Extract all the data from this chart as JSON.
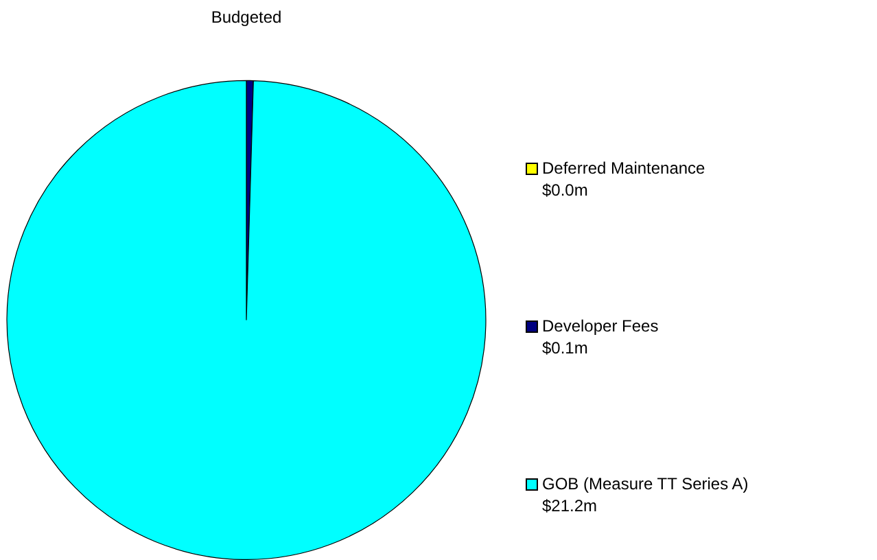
{
  "chart_data": {
    "type": "pie",
    "title": "Budgeted",
    "categories": [
      "Deferred Maintenance",
      "Developer Fees",
      "GOB (Measure TT Series A)"
    ],
    "values": [
      0.0,
      0.1,
      21.2
    ],
    "value_labels": [
      "$0.0m",
      "$0.1m",
      "$21.2m"
    ],
    "colors": [
      "#ffff00",
      "#000080",
      "#00ffff"
    ],
    "legend": "right"
  }
}
